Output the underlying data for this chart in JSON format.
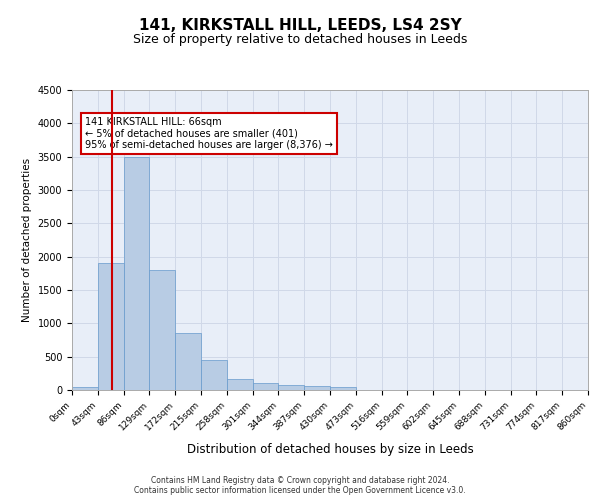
{
  "title1": "141, KIRKSTALL HILL, LEEDS, LS4 2SY",
  "title2": "Size of property relative to detached houses in Leeds",
  "xlabel": "Distribution of detached houses by size in Leeds",
  "ylabel": "Number of detached properties",
  "bin_labels": [
    "0sqm",
    "43sqm",
    "86sqm",
    "129sqm",
    "172sqm",
    "215sqm",
    "258sqm",
    "301sqm",
    "344sqm",
    "387sqm",
    "430sqm",
    "473sqm",
    "516sqm",
    "559sqm",
    "602sqm",
    "645sqm",
    "688sqm",
    "731sqm",
    "774sqm",
    "817sqm",
    "860sqm"
  ],
  "bar_values": [
    50,
    1900,
    3500,
    1800,
    850,
    450,
    160,
    100,
    75,
    60,
    40,
    0,
    0,
    0,
    0,
    0,
    0,
    0,
    0,
    0
  ],
  "bar_color": "#b8cce4",
  "bar_edge_color": "#6699cc",
  "vline_x": 1.55,
  "vline_color": "#cc0000",
  "annotation_text": "141 KIRKSTALL HILL: 66sqm\n← 5% of detached houses are smaller (401)\n95% of semi-detached houses are larger (8,376) →",
  "annotation_box_color": "#ffffff",
  "annotation_box_edge": "#cc0000",
  "ylim": [
    0,
    4500
  ],
  "yticks": [
    0,
    500,
    1000,
    1500,
    2000,
    2500,
    3000,
    3500,
    4000,
    4500
  ],
  "grid_color": "#d0d8e8",
  "bg_color": "#e8eef8",
  "footer1": "Contains HM Land Registry data © Crown copyright and database right 2024.",
  "footer2": "Contains public sector information licensed under the Open Government Licence v3.0."
}
